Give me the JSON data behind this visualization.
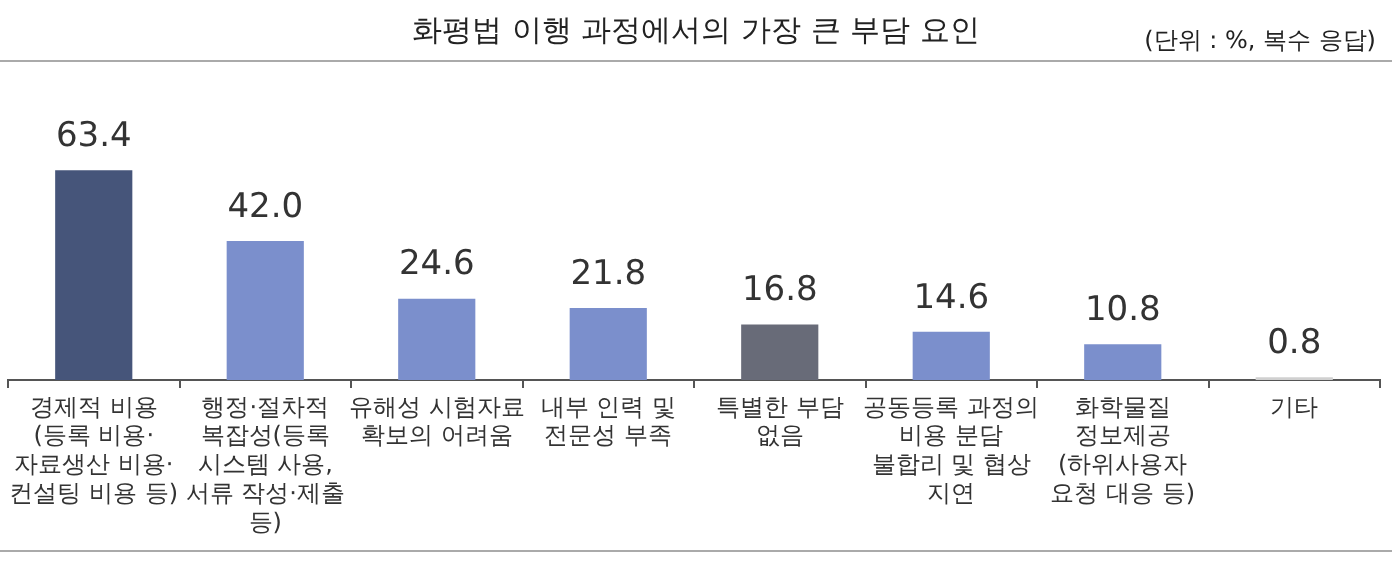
{
  "chart_data": {
    "type": "bar",
    "title": "화평법 이행 과정에서의 가장 큰 부담 요인",
    "annotations": [
      "(단위 : %, 복수 응답)"
    ],
    "categories": [
      "경제적 비용 (등록 비용· 자료생산 비용· 컨설팅 비용 등)",
      "행정·절차적 복잡성(등록 시스템 사용, 서류 작성·제출 등)",
      "유해성 시험자료 확보의 어려움",
      "내부 인력 및 전문성 부족",
      "특별한 부담 없음",
      "공동등록 과정의 비용 분담 불합리 및 협상 지연",
      "화학물질 정보제공 (하위사용자 요청 대응 등)",
      "기타"
    ],
    "values": [
      63.4,
      42.0,
      24.6,
      21.8,
      16.8,
      14.6,
      10.8,
      0.8
    ],
    "colors": [
      "#46557a",
      "#7b8fcc",
      "#7b8fcc",
      "#7b8fcc",
      "#686b78",
      "#7b8fcc",
      "#7b8fcc",
      "#d0d0d0"
    ],
    "value_labels": [
      "63.4",
      "42.0",
      "24.6",
      "21.8",
      "16.8",
      "14.6",
      "10.8",
      "0.8"
    ],
    "grid": false,
    "legend": false
  }
}
